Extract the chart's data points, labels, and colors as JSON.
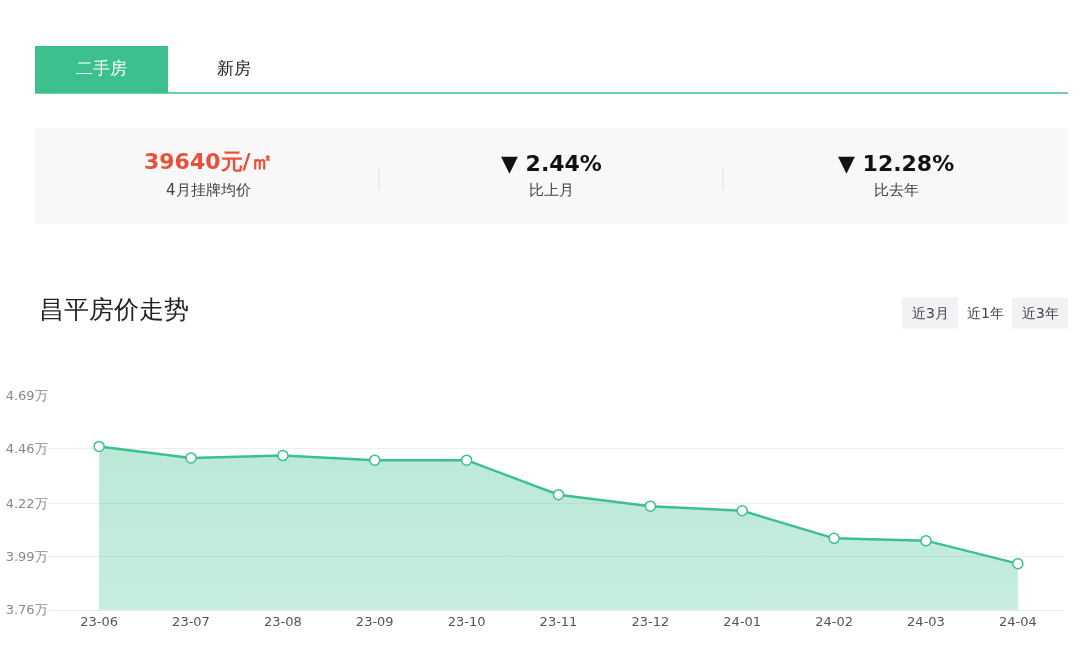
{
  "chart_data": {
    "type": "area",
    "title": "昌平房价走势",
    "categories": [
      "23-06",
      "23-07",
      "23-08",
      "23-09",
      "23-10",
      "23-11",
      "23-12",
      "24-01",
      "24-02",
      "24-03",
      "24-04"
    ],
    "series": [
      {
        "color": "#3cc08e",
        "values": [
          4.47,
          4.42,
          4.43,
          4.41,
          4.41,
          4.26,
          4.21,
          4.19,
          4.07,
          4.06,
          3.96
        ]
      }
    ],
    "ylim": [
      3.76,
      4.69
    ],
    "yticks": [
      {
        "value": 3.76,
        "label": "3.76万"
      },
      {
        "value": 3.99,
        "label": "3.99万"
      },
      {
        "value": 4.22,
        "label": "4.22万"
      },
      {
        "value": 4.46,
        "label": "4.46万"
      },
      {
        "value": 4.69,
        "label": "4.69万"
      }
    ],
    "grid": "y",
    "marker": "circle",
    "line_style": "solid",
    "legend": false,
    "annotations": [
      "二手房",
      "新房",
      "39640元/㎡",
      "4月挂牌均价",
      "▼ 2.44%",
      "比上月",
      "▼ 12.28%",
      "比去年",
      "近3月",
      "近1年",
      "近3年"
    ]
  }
}
